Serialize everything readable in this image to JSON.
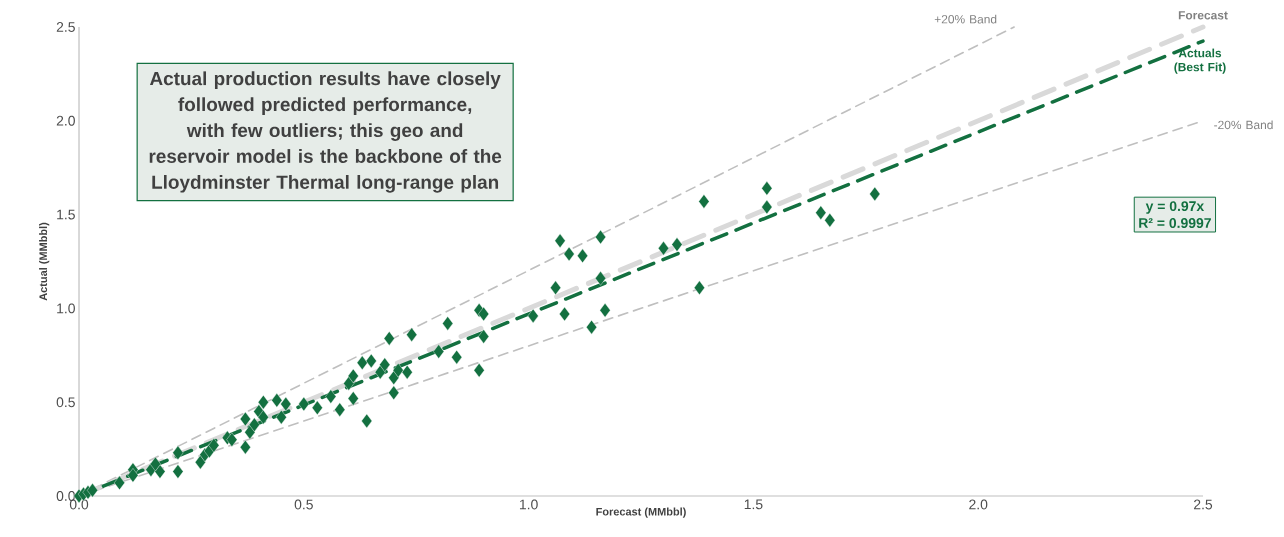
{
  "chart_data": {
    "type": "scatter",
    "xlabel": "Forecast (MMbbl)",
    "ylabel": "Actual (MMbbl)",
    "xlim": [
      0,
      2.5
    ],
    "ylim": [
      0,
      2.5
    ],
    "xticks": [
      {
        "value": 0,
        "label": "0.0"
      },
      {
        "value": 0.5,
        "label": "0.5"
      },
      {
        "value": 1,
        "label": "1.0"
      },
      {
        "value": 1.5,
        "label": "1.5"
      },
      {
        "value": 2,
        "label": "2.0"
      },
      {
        "value": 2.5,
        "label": "2.5"
      }
    ],
    "yticks": [
      {
        "value": 0,
        "label": "0.0"
      },
      {
        "value": 0.5,
        "label": "0.5"
      },
      {
        "value": 1,
        "label": "1.0"
      },
      {
        "value": 1.5,
        "label": "1.5"
      },
      {
        "value": 2,
        "label": "2.0"
      },
      {
        "value": 2.5,
        "label": "2.5"
      }
    ],
    "series": [
      {
        "type": "line",
        "name": "+20% Band",
        "color": "#bfbfbf",
        "line_style": "dashed",
        "x": [
          0,
          2.08
        ],
        "values": [
          0,
          2.5
        ]
      },
      {
        "type": "line",
        "name": "-20% Band",
        "color": "#bfbfbf",
        "line_style": "dashed",
        "x": [
          0,
          2.5
        ],
        "values": [
          0,
          2.0
        ]
      },
      {
        "type": "line",
        "name": "Forecast",
        "color": "#d9d9d9",
        "line_style": "dashed",
        "x": [
          0,
          2.5
        ],
        "values": [
          0,
          2.5
        ]
      },
      {
        "marker": "diamond",
        "color": "#137040",
        "x": [
          0.0,
          0.01,
          0.02,
          0.03,
          0.09,
          0.12,
          0.12,
          0.16,
          0.18,
          0.17,
          0.22,
          0.22,
          0.27,
          0.28,
          0.29,
          0.3,
          0.33,
          0.34,
          0.37,
          0.37,
          0.38,
          0.39,
          0.4,
          0.41,
          0.41,
          0.44,
          0.45,
          0.46,
          0.5,
          0.53,
          0.56,
          0.58,
          0.6,
          0.61,
          0.61,
          0.63,
          0.64,
          0.65,
          0.67,
          0.68,
          0.69,
          0.7,
          0.7,
          0.71,
          0.73,
          0.74,
          0.8,
          0.82,
          0.84,
          0.89,
          0.89,
          0.9,
          0.9,
          1.01,
          1.06,
          1.07,
          1.08,
          1.09,
          1.12,
          1.14,
          1.16,
          1.16,
          1.17,
          1.3,
          1.33,
          1.38,
          1.39,
          1.53,
          1.53,
          1.65,
          1.67,
          1.77
        ],
        "values": [
          0.0,
          0.01,
          0.02,
          0.03,
          0.07,
          0.14,
          0.11,
          0.14,
          0.13,
          0.17,
          0.23,
          0.13,
          0.18,
          0.22,
          0.24,
          0.27,
          0.31,
          0.3,
          0.26,
          0.41,
          0.34,
          0.38,
          0.45,
          0.5,
          0.42,
          0.51,
          0.42,
          0.49,
          0.49,
          0.47,
          0.53,
          0.46,
          0.6,
          0.52,
          0.64,
          0.71,
          0.4,
          0.72,
          0.66,
          0.7,
          0.84,
          0.63,
          0.55,
          0.67,
          0.66,
          0.86,
          0.77,
          0.92,
          0.74,
          0.67,
          0.99,
          0.85,
          0.97,
          0.96,
          1.11,
          1.36,
          0.97,
          1.29,
          1.28,
          0.9,
          1.38,
          1.16,
          0.99,
          1.32,
          1.34,
          1.11,
          1.57,
          1.64,
          1.54,
          1.51,
          1.47,
          1.61
        ]
      },
      {
        "type": "line",
        "name": "Actuals (Best Fit)",
        "color": "#137040",
        "line_style": "dashed",
        "x": [
          0,
          2.5
        ],
        "values": [
          0,
          2.425
        ]
      }
    ],
    "annotations": [
      "Actual production results have closely followed predicted performance, with few outliers; this geo and reservoir model is the backbone of the Lloydminster Thermal long-range plan",
      "y = 0.97x",
      "R² = 0.9997"
    ]
  }
}
